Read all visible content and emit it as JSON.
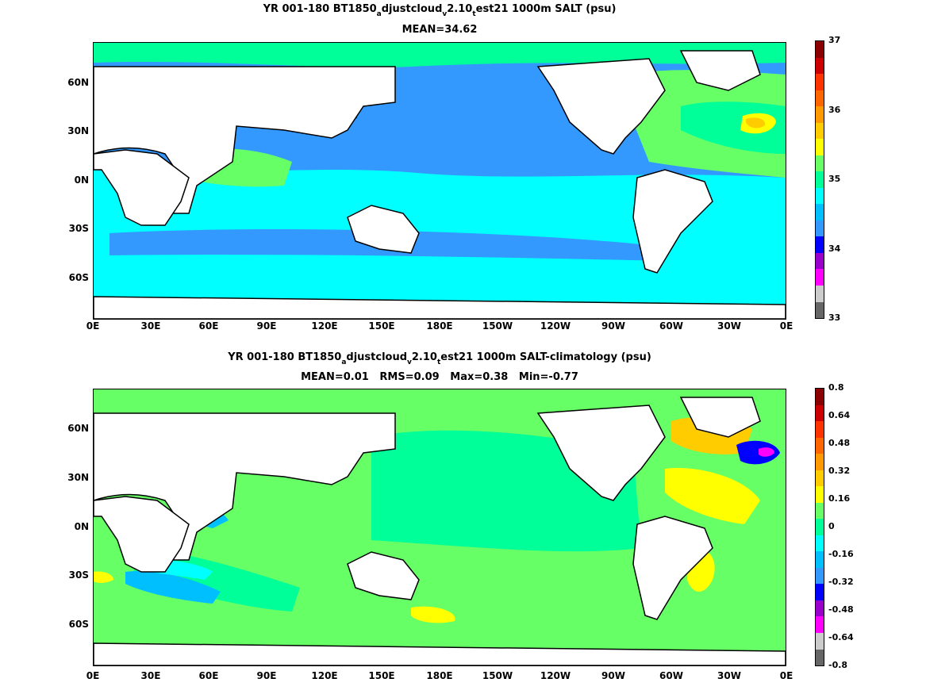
{
  "panels": [
    {
      "title_parts": [
        "YR 001-180 BT1850",
        "a",
        "djustcloud",
        "v",
        "2.10",
        "t",
        "est21 1000m SALT (psu)"
      ],
      "subtitle": "MEAN=34.62",
      "colorbar_labels": [
        "37",
        "36",
        "35",
        "34",
        "33"
      ],
      "colorbar_colors": [
        "#8b0000",
        "#cc0000",
        "#ff3300",
        "#ff6600",
        "#ff9900",
        "#ffcc00",
        "#ffff00",
        "#66ff66",
        "#00ff99",
        "#00ffff",
        "#00bfff",
        "#3399ff",
        "#0000ff",
        "#9900cc",
        "#ff00ff",
        "#cccccc",
        "#666666"
      ],
      "fill_colors": {
        "land": "#ffffff",
        "base": "#3399ff",
        "cyan": "#00ffff",
        "green": "#66ff66",
        "aqua": "#00ff99",
        "yellow": "#ffff00",
        "orange": "#ffcc00",
        "blue": "#0000ff",
        "darkred": "#8b0000"
      }
    },
    {
      "title_parts": [
        "YR 001-180 BT1850",
        "a",
        "djustcloud",
        "v",
        "2.10",
        "t",
        "est21 1000m SALT-climatology (psu)"
      ],
      "subtitle": "MEAN=0.01   RMS=0.09   Max=0.38   Min=-0.77",
      "colorbar_labels": [
        "0.8",
        "0.64",
        "0.48",
        "0.32",
        "0.16",
        "0",
        "-0.16",
        "-0.32",
        "-0.48",
        "-0.64",
        "-0.8"
      ],
      "colorbar_colors": [
        "#8b0000",
        "#cc0000",
        "#ff3300",
        "#ff6600",
        "#ff9900",
        "#ffcc00",
        "#ffff00",
        "#66ff66",
        "#00ff99",
        "#00ffff",
        "#00bfff",
        "#3399ff",
        "#0000ff",
        "#9900cc",
        "#ff00ff",
        "#cccccc",
        "#666666"
      ],
      "fill_colors": {
        "land": "#ffffff",
        "base": "#66ff66",
        "cyan": "#00ffff",
        "aqua": "#00ff99",
        "lightblue": "#00bfff",
        "yellow": "#ffff00",
        "orange": "#ffcc00",
        "blue": "#0000ff",
        "magenta": "#ff00ff"
      }
    }
  ],
  "lat_labels": [
    "60N",
    "30N",
    "0N",
    "30S",
    "60S"
  ],
  "lon_labels": [
    "0E",
    "30E",
    "60E",
    "90E",
    "120E",
    "150E",
    "180E",
    "150W",
    "120W",
    "90W",
    "60W",
    "30W",
    "0E"
  ]
}
